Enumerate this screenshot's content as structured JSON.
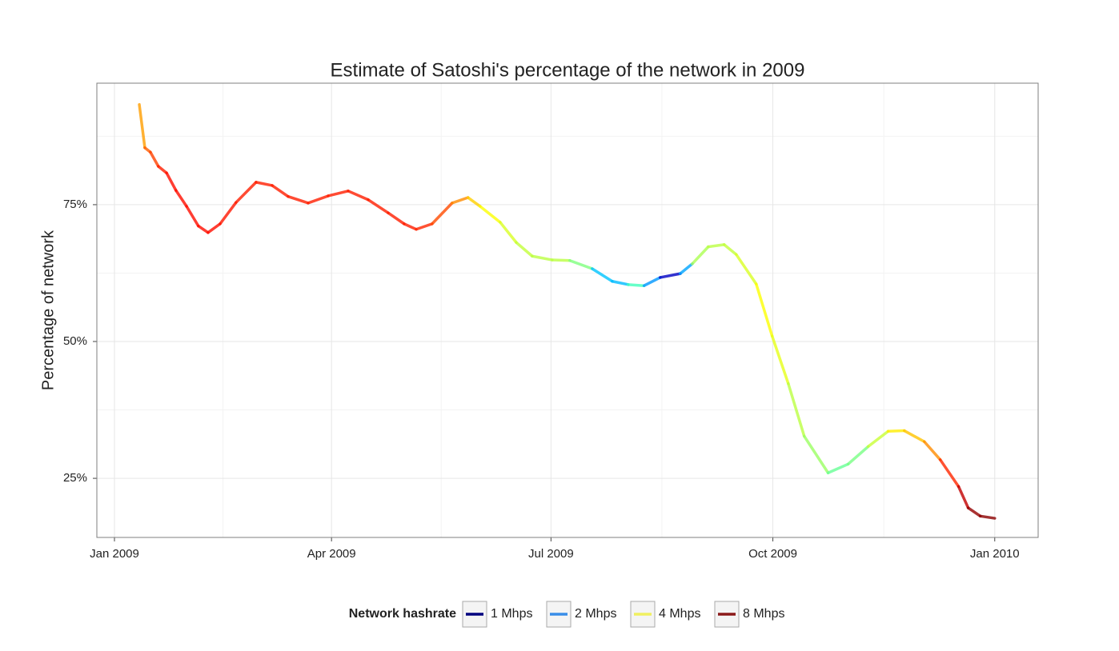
{
  "chart_data": {
    "type": "line",
    "title": "Estimate of Satoshi's percentage of the network in 2009",
    "y_label": "Percentage of network",
    "x": [
      10.3,
      12.6,
      14.9,
      18.2,
      21.6,
      25.5,
      29.9,
      34.8,
      38.8,
      43.8,
      50.4,
      58.7,
      65.4,
      72.0,
      80.3,
      88.6,
      96.9,
      105.2,
      113.5,
      120.1,
      125.1,
      131.7,
      140.0,
      146.6,
      151.6,
      159.9,
      166.6,
      173.2,
      181.5,
      188.8,
      198.1,
      206.4,
      213.0,
      219.6,
      226.3,
      234.6,
      239.6,
      246.2,
      252.8,
      257.8,
      266.1,
      272.7,
      279.4,
      286.0,
      295.9,
      304.2,
      312.5,
      320.8,
      327.5,
      335.8,
      342.4,
      350.0,
      354.0,
      359.0,
      365.0
    ],
    "series": [
      {
        "values": [
          93.3,
          85.4,
          84.6,
          82.0,
          80.8,
          77.6,
          74.7,
          71.1,
          69.9,
          71.5,
          75.4,
          79.1,
          78.5,
          76.5,
          75.3,
          76.6,
          77.5,
          75.9,
          73.5,
          71.5,
          70.5,
          71.5,
          75.3,
          76.3,
          74.7,
          71.8,
          68.1,
          65.6,
          64.9,
          64.8,
          63.3,
          61.0,
          60.4,
          60.2,
          61.7,
          62.4,
          64.2,
          67.3,
          67.7,
          65.9,
          60.5,
          51.0,
          42.3,
          32.7,
          26.0,
          27.6,
          30.8,
          33.6,
          33.7,
          31.7,
          28.4,
          23.5,
          19.6,
          18.1,
          17.7
        ],
        "hashrate": [
          4,
          5,
          5.2,
          5.6,
          6,
          6,
          6,
          6,
          6,
          6,
          5.8,
          5.8,
          5.8,
          5.8,
          5.8,
          5.8,
          5.8,
          5.8,
          5.8,
          5.8,
          5.8,
          5.6,
          5,
          4.3,
          3.8,
          3.5,
          3.3,
          3.2,
          3.2,
          3.2,
          2.5,
          1.5,
          2.4,
          2.6,
          1.2,
          1.1,
          3,
          3.2,
          3.2,
          3.3,
          3.5,
          3.8,
          3.2,
          3.2,
          2.8,
          2.6,
          3,
          3.6,
          4,
          4.3,
          5,
          6.5,
          7.5,
          7.8,
          7.8
        ]
      }
    ],
    "xlim": [
      -7.3,
      383
    ],
    "xticks": [
      {
        "value": 0,
        "label": "Jan 2009"
      },
      {
        "value": 90,
        "label": "Apr 2009"
      },
      {
        "value": 181,
        "label": "Jul 2009"
      },
      {
        "value": 273,
        "label": "Oct 2009"
      },
      {
        "value": 365,
        "label": "Jan 2010"
      }
    ],
    "ylim": [
      14.2,
      97.2
    ],
    "yticks": [
      {
        "value": 25,
        "label": "25%"
      },
      {
        "value": 50,
        "label": "50%"
      },
      {
        "value": 75,
        "label": "75%"
      }
    ],
    "grid": true,
    "legend": {
      "title": "Network hashrate",
      "position": "bottom",
      "entries": [
        {
          "value": 1,
          "label": "1 Mhps",
          "color": "#00007f"
        },
        {
          "value": 2,
          "label": "2 Mhps",
          "color": "#3a8ee8"
        },
        {
          "value": 4,
          "label": "4 Mhps",
          "color": "#f0f060"
        },
        {
          "value": 8,
          "label": "8 Mhps",
          "color": "#8b1a1a"
        }
      ],
      "palette": [
        "#00007f",
        "#0000ff",
        "#007fff",
        "#00ffff",
        "#7fff7f",
        "#ffff00",
        "#ff7f00",
        "#ff0000",
        "#7f0000"
      ]
    }
  }
}
